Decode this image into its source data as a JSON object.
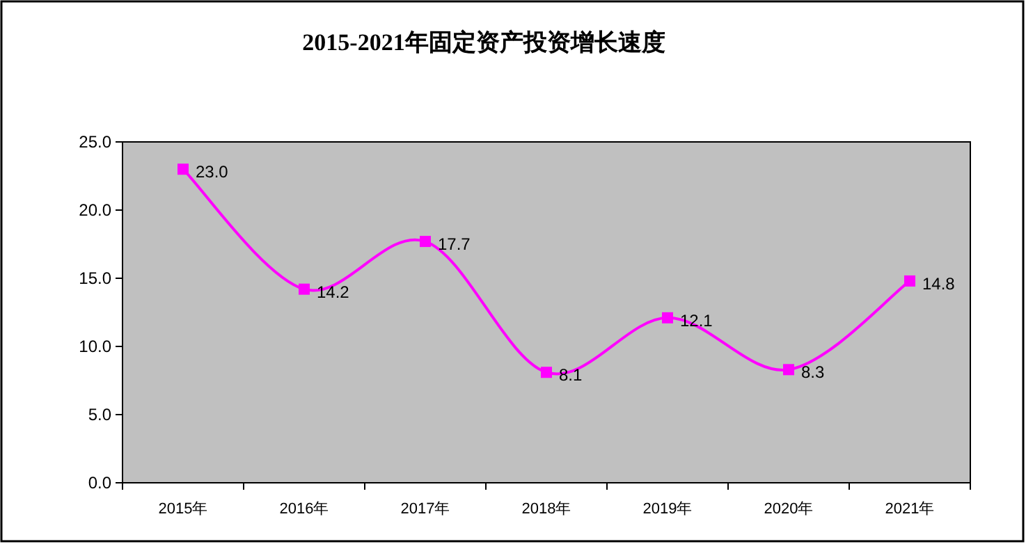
{
  "chart_data": {
    "type": "line",
    "title": "2015-2021年固定资产投资增长速度",
    "categories": [
      "2015年",
      "2016年",
      "2017年",
      "2018年",
      "2019年",
      "2020年",
      "2021年"
    ],
    "values": [
      23.0,
      14.2,
      17.7,
      8.1,
      12.1,
      8.3,
      14.8
    ],
    "value_labels": [
      "23.0",
      "14.2",
      "17.7",
      "8.1",
      "12.1",
      "8.3",
      "14.8"
    ],
    "color": "#ff00ff",
    "ylim": [
      0,
      25
    ],
    "yticks": [
      {
        "value": 0,
        "label": "0.0"
      },
      {
        "value": 5,
        "label": "5.0"
      },
      {
        "value": 10,
        "label": "10.0"
      },
      {
        "value": 15,
        "label": "15.0"
      },
      {
        "value": 20,
        "label": "20.0"
      },
      {
        "value": 25,
        "label": "25.0"
      }
    ],
    "marker": "square",
    "line_style": "solid"
  }
}
